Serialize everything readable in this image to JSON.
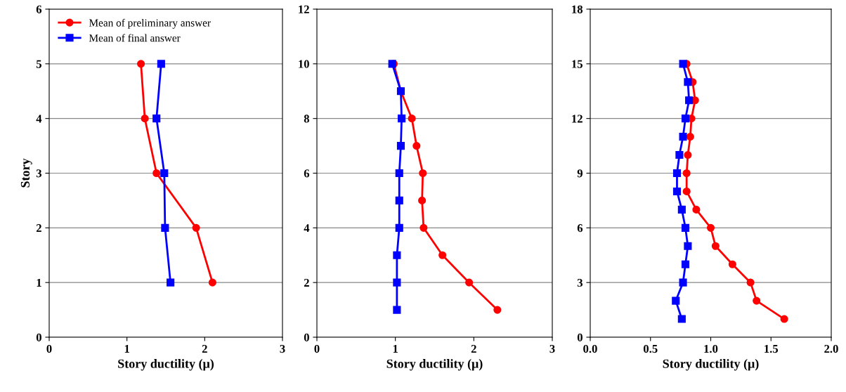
{
  "chart_data": [
    {
      "type": "line",
      "xlabel": "Story ductility (μ)",
      "ylabel": "Story",
      "xlim": [
        0,
        3
      ],
      "xticks": [
        0,
        1,
        2,
        3
      ],
      "ylim": [
        0,
        6
      ],
      "yticks": [
        0,
        1,
        2,
        3,
        4,
        5,
        6
      ],
      "grid": "y",
      "legend": "top left",
      "series": [
        {
          "name": "Mean of preliminary answer",
          "color": "#ff0000",
          "marker": "circle",
          "x": [
            2.1,
            1.89,
            1.38,
            1.23,
            1.18
          ],
          "values": [
            1,
            2,
            3,
            4,
            5
          ]
        },
        {
          "name": "Mean of final answer",
          "color": "#0000ff",
          "marker": "square",
          "x": [
            1.56,
            1.49,
            1.48,
            1.38,
            1.44
          ],
          "values": [
            1,
            2,
            3,
            4,
            5
          ]
        }
      ]
    },
    {
      "type": "line",
      "xlabel": "Story ductility (μ)",
      "xlim": [
        0,
        3
      ],
      "xticks": [
        0,
        1,
        2,
        3
      ],
      "ylim": [
        0,
        12
      ],
      "yticks": [
        0,
        2,
        4,
        6,
        8,
        10,
        12
      ],
      "grid": "y",
      "series": [
        {
          "color": "#ff0000",
          "marker": "circle",
          "x": [
            2.3,
            1.94,
            1.6,
            1.36,
            1.34,
            1.35,
            1.27,
            1.21,
            1.07,
            0.98
          ],
          "values": [
            1,
            2,
            3,
            4,
            5,
            6,
            7,
            8,
            9,
            10
          ]
        },
        {
          "color": "#0000ff",
          "marker": "square",
          "x": [
            1.02,
            1.02,
            1.02,
            1.05,
            1.05,
            1.05,
            1.07,
            1.08,
            1.07,
            0.96
          ],
          "values": [
            1,
            2,
            3,
            4,
            5,
            6,
            7,
            8,
            9,
            10
          ]
        }
      ]
    },
    {
      "type": "line",
      "xlabel": "Story ductility (μ)",
      "xlim": [
        0,
        2
      ],
      "xticks": [
        {
          "value": 0,
          "label": "0.0"
        },
        {
          "value": 0.5,
          "label": "0.5"
        },
        {
          "value": 1,
          "label": "1.0"
        },
        {
          "value": 1.5,
          "label": "1.5"
        },
        {
          "value": 2,
          "label": "2.0"
        }
      ],
      "ylim": [
        0,
        18
      ],
      "yticks": [
        0,
        3,
        6,
        9,
        12,
        15,
        18
      ],
      "grid": "y",
      "series": [
        {
          "color": "#ff0000",
          "marker": "circle",
          "x": [
            1.61,
            1.38,
            1.33,
            1.18,
            1.04,
            1.0,
            0.88,
            0.8,
            0.8,
            0.81,
            0.83,
            0.84,
            0.87,
            0.85,
            0.8
          ],
          "values": [
            1,
            2,
            3,
            4,
            5,
            6,
            7,
            8,
            9,
            10,
            11,
            12,
            13,
            14,
            15
          ]
        },
        {
          "color": "#0000ff",
          "marker": "square",
          "x": [
            0.76,
            0.71,
            0.77,
            0.79,
            0.81,
            0.79,
            0.76,
            0.72,
            0.72,
            0.74,
            0.77,
            0.79,
            0.82,
            0.81,
            0.77
          ],
          "values": [
            1,
            2,
            3,
            4,
            5,
            6,
            7,
            8,
            9,
            10,
            11,
            12,
            13,
            14,
            15
          ]
        }
      ]
    }
  ]
}
